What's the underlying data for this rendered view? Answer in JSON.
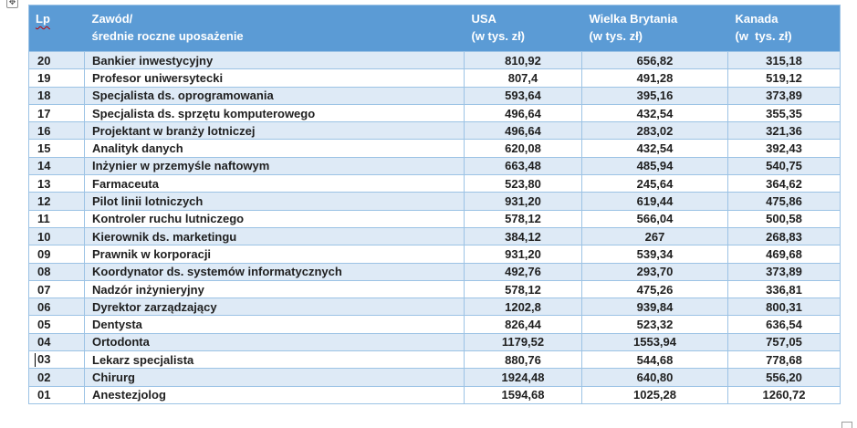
{
  "colors": {
    "header_bg": "#5B9BD5",
    "header_text": "#FFFFFF",
    "band_bg": "#DEEAF6",
    "border": "#9CC3E5",
    "body_text": "#1F1F1F",
    "squiggle": "#C00000"
  },
  "ui": {
    "text_caret_row": "03"
  },
  "table": {
    "columns": [
      {
        "id": "lp",
        "line1": "Lp",
        "line2": ""
      },
      {
        "id": "zawod",
        "line1": "Zawód/",
        "line2": "średnie roczne uposażenie"
      },
      {
        "id": "usa",
        "line1": "USA",
        "line2": "(w tys. zł)"
      },
      {
        "id": "wielka_brytania",
        "line1": "Wielka Brytania",
        "line2": "(w tys. zł)"
      },
      {
        "id": "kanada",
        "line1": "Kanada",
        "line2": "(w  tys. zł)"
      }
    ],
    "rows": [
      {
        "lp": "20",
        "zawod": "Bankier inwestycyjny",
        "usa": "810,92",
        "wielka_brytania": "656,82",
        "kanada": "315,18"
      },
      {
        "lp": "19",
        "zawod": "Profesor uniwersytecki",
        "usa": "807,4",
        "wielka_brytania": "491,28",
        "kanada": "519,12"
      },
      {
        "lp": "18",
        "zawod": "Specjalista ds. oprogramowania",
        "usa": "593,64",
        "wielka_brytania": "395,16",
        "kanada": "373,89"
      },
      {
        "lp": "17",
        "zawod": "Specjalista ds. sprzętu komputerowego",
        "usa": "496,64",
        "wielka_brytania": "432,54",
        "kanada": "355,35"
      },
      {
        "lp": "16",
        "zawod": "Projektant w branży lotniczej",
        "usa": "496,64",
        "wielka_brytania": "283,02",
        "kanada": "321,36"
      },
      {
        "lp": "15",
        "zawod": "Analityk danych",
        "usa": "620,08",
        "wielka_brytania": "432,54",
        "kanada": "392,43"
      },
      {
        "lp": "14",
        "zawod": "Inżynier w przemyśle naftowym",
        "usa": "663,48",
        "wielka_brytania": "485,94",
        "kanada": "540,75"
      },
      {
        "lp": "13",
        "zawod": "Farmaceuta",
        "usa": "523,80",
        "wielka_brytania": "245,64",
        "kanada": "364,62"
      },
      {
        "lp": "12",
        "zawod": "Pilot linii lotniczych",
        "usa": "931,20",
        "wielka_brytania": "619,44",
        "kanada": "475,86"
      },
      {
        "lp": "11",
        "zawod": "Kontroler ruchu lutniczego",
        "usa": "578,12",
        "wielka_brytania": "566,04",
        "kanada": "500,58"
      },
      {
        "lp": "10",
        "zawod": "Kierownik ds. marketingu",
        "usa": "384,12",
        "wielka_brytania": "267",
        "kanada": "268,83"
      },
      {
        "lp": "09",
        "zawod": "Prawnik w korporacji",
        "usa": "931,20",
        "wielka_brytania": "539,34",
        "kanada": "469,68"
      },
      {
        "lp": "08",
        "zawod": "Koordynator ds. systemów informatycznych",
        "usa": "492,76",
        "wielka_brytania": "293,70",
        "kanada": "373,89"
      },
      {
        "lp": "07",
        "zawod": "Nadzór inżynieryjny",
        "usa": "578,12",
        "wielka_brytania": "475,26",
        "kanada": "336,81"
      },
      {
        "lp": "06",
        "zawod": "Dyrektor zarządzający",
        "usa": "1202,8",
        "wielka_brytania": "939,84",
        "kanada": "800,31"
      },
      {
        "lp": "05",
        "zawod": "Dentysta",
        "usa": "826,44",
        "wielka_brytania": "523,32",
        "kanada": "636,54"
      },
      {
        "lp": "04",
        "zawod": "Ortodonta",
        "usa": "1179,52",
        "wielka_brytania": "1553,94",
        "kanada": "757,05"
      },
      {
        "lp": "03",
        "zawod": "Lekarz specjalista",
        "usa": "880,76",
        "wielka_brytania": "544,68",
        "kanada": "778,68"
      },
      {
        "lp": "02",
        "zawod": "Chirurg",
        "usa": "1924,48",
        "wielka_brytania": "640,80",
        "kanada": "556,20"
      },
      {
        "lp": "01",
        "zawod": "Anestezjolog",
        "usa": "1594,68",
        "wielka_brytania": "1025,28",
        "kanada": "1260,72"
      }
    ]
  }
}
